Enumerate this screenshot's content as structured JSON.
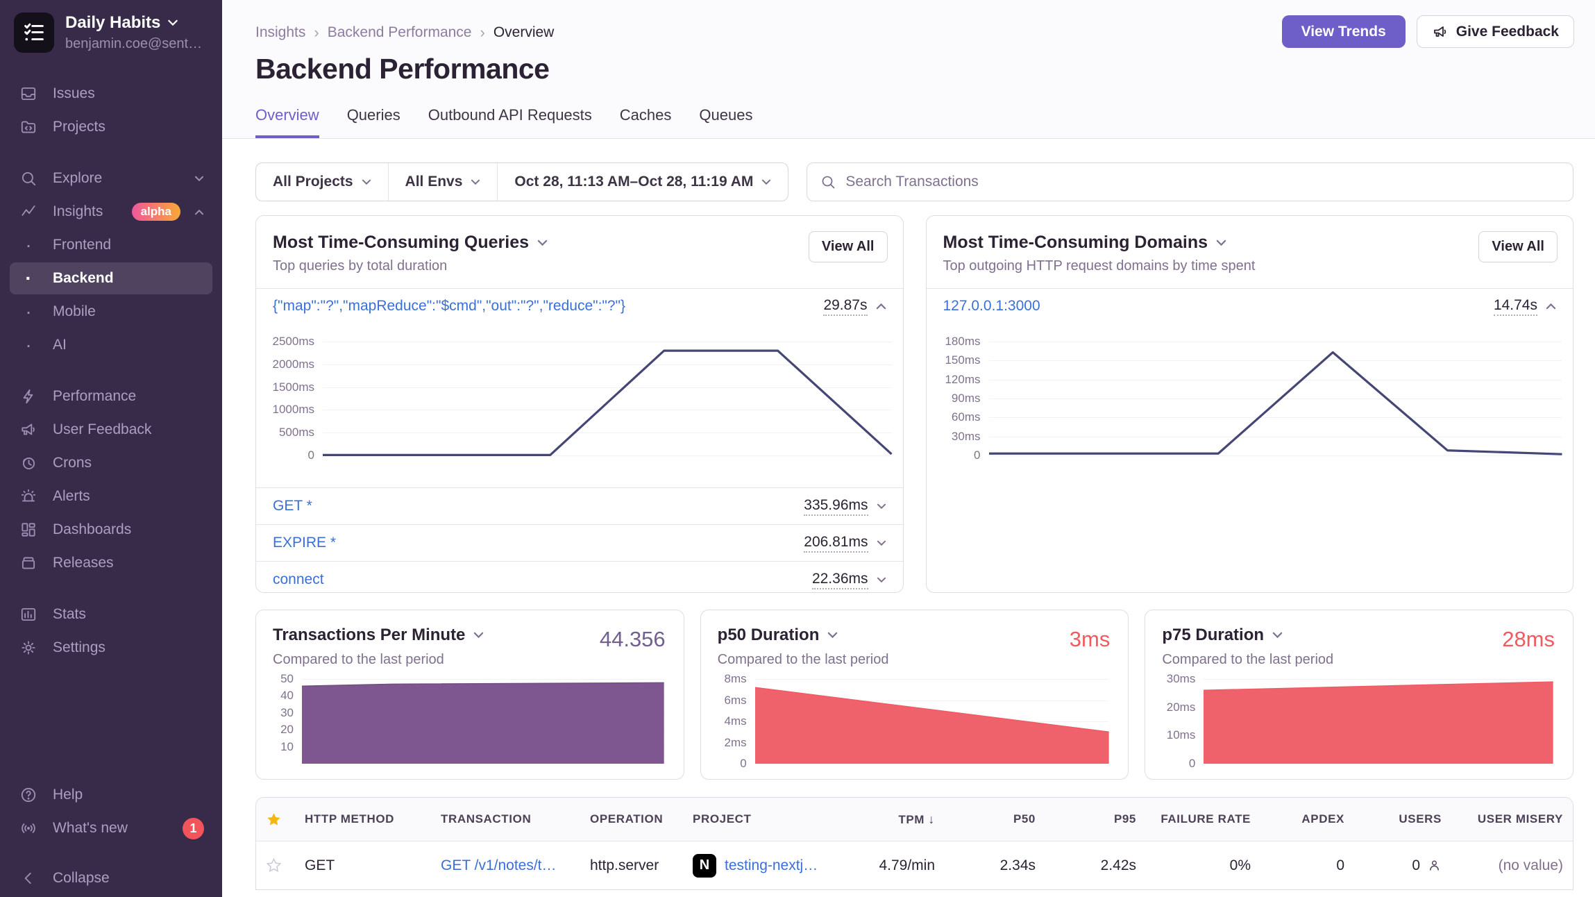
{
  "sidebar": {
    "org_name": "Daily Habits",
    "org_email": "benjamin.coe@sent…",
    "sections": [
      {
        "items": [
          {
            "label": "Issues",
            "icon": "issues-icon"
          },
          {
            "label": "Projects",
            "icon": "projects-icon"
          }
        ]
      },
      {
        "items": [
          {
            "label": "Explore",
            "icon": "search-icon",
            "chevron": "down"
          },
          {
            "label": "Insights",
            "icon": "insights-icon",
            "badge": "alpha",
            "chevron": "up"
          },
          {
            "label": "Frontend",
            "sub": true
          },
          {
            "label": "Backend",
            "sub": true,
            "active": true
          },
          {
            "label": "Mobile",
            "sub": true
          },
          {
            "label": "AI",
            "sub": true
          }
        ]
      },
      {
        "items": [
          {
            "label": "Performance",
            "icon": "performance-icon"
          },
          {
            "label": "User Feedback",
            "icon": "megaphone-icon"
          },
          {
            "label": "Crons",
            "icon": "clock-icon"
          },
          {
            "label": "Alerts",
            "icon": "siren-icon"
          },
          {
            "label": "Dashboards",
            "icon": "dashboards-icon"
          },
          {
            "label": "Releases",
            "icon": "releases-icon"
          }
        ]
      },
      {
        "items": [
          {
            "label": "Stats",
            "icon": "stats-icon"
          },
          {
            "label": "Settings",
            "icon": "gear-icon"
          }
        ]
      }
    ],
    "footer_items": [
      {
        "label": "Help",
        "icon": "help-icon"
      },
      {
        "label": "What's new",
        "icon": "broadcast-icon",
        "badge_count": "1"
      },
      {
        "label": "Collapse",
        "icon": "collapse-icon"
      }
    ]
  },
  "breadcrumbs": [
    "Insights",
    "Backend Performance",
    "Overview"
  ],
  "page_title": "Backend Performance",
  "actions": {
    "view_trends": "View Trends",
    "give_feedback": "Give Feedback"
  },
  "tabs": [
    {
      "label": "Overview",
      "active": true
    },
    {
      "label": "Queries"
    },
    {
      "label": "Outbound API Requests"
    },
    {
      "label": "Caches"
    },
    {
      "label": "Queues"
    }
  ],
  "filters": {
    "projects": "All Projects",
    "envs": "All Envs",
    "date_range": "Oct 28, 11:13 AM–Oct 28, 11:19 AM",
    "search_placeholder": "Search Transactions"
  },
  "panels": {
    "queries": {
      "title": "Most Time-Consuming Queries",
      "subtitle": "Top queries by total duration",
      "view_all": "View All",
      "expanded_row": {
        "label": "{\"map\":\"?\",\"mapReduce\":\"$cmd\",\"out\":\"?\",\"reduce\":\"?\"}",
        "value": "29.87s"
      },
      "rows": [
        {
          "label": "GET *",
          "value": "335.96ms"
        },
        {
          "label": "EXPIRE *",
          "value": "206.81ms"
        },
        {
          "label": "connect",
          "value": "22.36ms"
        }
      ]
    },
    "domains": {
      "title": "Most Time-Consuming Domains",
      "subtitle": "Top outgoing HTTP request domains by time spent",
      "view_all": "View All",
      "expanded_row": {
        "label": "127.0.0.1:3000",
        "value": "14.74s"
      }
    }
  },
  "metric_cards": [
    {
      "title": "Transactions Per Minute",
      "subtitle": "Compared to the last period",
      "value": "44.356",
      "value_color": "#71608f"
    },
    {
      "title": "p50 Duration",
      "subtitle": "Compared to the last period",
      "value": "3ms",
      "value_color": "#f05b5f"
    },
    {
      "title": "p75 Duration",
      "subtitle": "Compared to the last period",
      "value": "28ms",
      "value_color": "#f05b5f"
    }
  ],
  "table": {
    "columns": [
      {
        "label": "",
        "icon": "star"
      },
      {
        "label": "HTTP METHOD"
      },
      {
        "label": "TRANSACTION"
      },
      {
        "label": "OPERATION"
      },
      {
        "label": "PROJECT"
      },
      {
        "label": "TPM",
        "sort": "desc",
        "align": "right"
      },
      {
        "label": "P50",
        "align": "right"
      },
      {
        "label": "P95",
        "align": "right"
      },
      {
        "label": "FAILURE RATE",
        "align": "right"
      },
      {
        "label": "APDEX",
        "align": "right"
      },
      {
        "label": "USERS",
        "align": "right"
      },
      {
        "label": "USER MISERY",
        "align": "right"
      }
    ],
    "rows": [
      {
        "starred": false,
        "http_method": "GET",
        "transaction": "GET /v1/notes/t…",
        "operation": "http.server",
        "project": "testing-nextj…",
        "tpm": "4.79/min",
        "p50": "2.34s",
        "p95": "2.42s",
        "failure_rate": "0%",
        "apdex": "0",
        "users": "0",
        "user_misery": "(no value)"
      }
    ]
  },
  "chart_data": [
    {
      "id": "queries-duration",
      "type": "line",
      "title": "Most Time-Consuming Queries",
      "ylabel": "duration",
      "ylim": [
        0,
        2500
      ],
      "ytick_values": [
        2500,
        2000,
        1500,
        1000,
        500,
        0
      ],
      "ytick_labels": [
        "2500ms",
        "2000ms",
        "1500ms",
        "1000ms",
        "500ms",
        "0"
      ],
      "tick_width": 62,
      "stroke": "#444674",
      "points": [
        [
          0,
          10
        ],
        [
          40,
          10
        ],
        [
          60,
          2300
        ],
        [
          80,
          2300
        ],
        [
          100,
          30
        ]
      ]
    },
    {
      "id": "domains-duration",
      "type": "line",
      "title": "Most Time-Consuming Domains",
      "ylabel": "duration",
      "ylim": [
        0,
        180
      ],
      "ytick_values": [
        180,
        150,
        120,
        90,
        60,
        30,
        0
      ],
      "ytick_labels": [
        "180ms",
        "150ms",
        "120ms",
        "90ms",
        "60ms",
        "30ms",
        "0"
      ],
      "tick_width": 56,
      "stroke": "#444674",
      "points": [
        [
          0,
          3
        ],
        [
          40,
          3
        ],
        [
          60,
          163
        ],
        [
          80,
          8
        ],
        [
          100,
          2
        ]
      ]
    },
    {
      "id": "tpm",
      "type": "area",
      "title": "Transactions Per Minute",
      "ylim": [
        0,
        50
      ],
      "ytick_values": [
        50,
        40,
        30,
        20,
        10
      ],
      "ytick_labels": [
        "50",
        "40",
        "30",
        "20",
        "10"
      ],
      "tick_width": 30,
      "stroke": "#6f4e80",
      "fill": "#7e5791",
      "points": [
        [
          0,
          45.8
        ],
        [
          25,
          47
        ],
        [
          100,
          47.8
        ]
      ]
    },
    {
      "id": "p50-duration",
      "type": "area",
      "title": "p50 Duration",
      "ylim": [
        0,
        8
      ],
      "ytick_values": [
        8,
        6,
        4,
        2,
        0
      ],
      "ytick_labels": [
        "8ms",
        "6ms",
        "4ms",
        "2ms",
        "0"
      ],
      "tick_width": 42,
      "stroke": "#ee5b65",
      "fill": "#ef626b",
      "points": [
        [
          0,
          7.2
        ],
        [
          100,
          3
        ]
      ]
    },
    {
      "id": "p75-duration",
      "type": "area",
      "title": "p75 Duration",
      "ylim": [
        0,
        30
      ],
      "ytick_values": [
        30,
        20,
        10,
        0
      ],
      "ytick_labels": [
        "30ms",
        "20ms",
        "10ms",
        "0"
      ],
      "tick_width": 48,
      "stroke": "#ee5b65",
      "fill": "#ef626b",
      "points": [
        [
          0,
          26
        ],
        [
          100,
          29
        ]
      ]
    }
  ]
}
